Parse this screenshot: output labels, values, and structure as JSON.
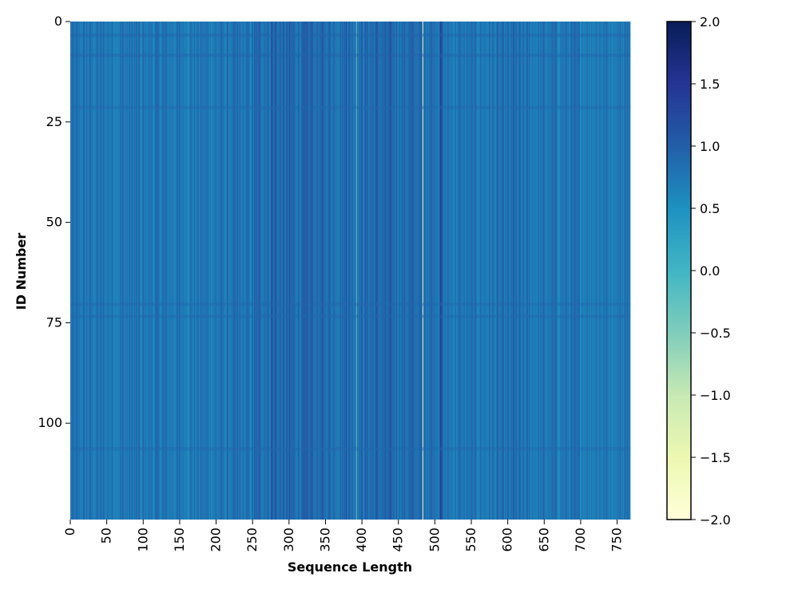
{
  "chart_data": {
    "type": "heatmap",
    "title": "",
    "xlabel": "Sequence Length",
    "ylabel": "ID Number",
    "x_range": [
      0,
      768
    ],
    "y_range": [
      0,
      124
    ],
    "y_inverted": true,
    "x_ticks": [
      0,
      50,
      100,
      150,
      200,
      250,
      300,
      350,
      400,
      450,
      500,
      550,
      600,
      650,
      700,
      750
    ],
    "y_ticks": [
      0,
      25,
      50,
      75,
      100
    ],
    "colormap": "YlGnBu",
    "colormap_stops": [
      "#ffffd9",
      "#edf8b1",
      "#c7e9b4",
      "#7fcdbb",
      "#41b6c4",
      "#1d91c0",
      "#225ea8",
      "#253494",
      "#081d58"
    ],
    "colorbar": {
      "min": -2.0,
      "max": 2.0,
      "ticks": [
        2.0,
        1.5,
        1.0,
        0.5,
        0.0,
        -0.5,
        -1.0,
        -1.5,
        -2.0
      ],
      "tick_labels": [
        "2.0",
        "1.5",
        "1.0",
        "0.5",
        "0.0",
        "−0.5",
        "−1.0",
        "−1.5",
        "−2.0"
      ]
    },
    "base_value": 0.75,
    "column_offsets": [
      {
        "x": 97,
        "value": 0.3
      },
      {
        "x": 252,
        "value": 1.0
      },
      {
        "x": 276,
        "value": 1.3
      },
      {
        "x": 281,
        "value": 1.2
      },
      {
        "x": 300,
        "value": 1.2
      },
      {
        "x": 330,
        "value": 1.25
      },
      {
        "x": 378,
        "value": 1.3
      },
      {
        "x": 392,
        "value": -0.3
      },
      {
        "x": 419,
        "value": 1.3
      },
      {
        "x": 438,
        "value": 1.2
      },
      {
        "x": 483,
        "value": -1.9
      },
      {
        "x": 507,
        "value": 1.6
      },
      {
        "x": 509,
        "value": 1.5
      },
      {
        "x": 608,
        "value": 1.2
      },
      {
        "x": 764,
        "value": 1.0
      }
    ],
    "row_bands": [
      {
        "y": 3,
        "value": 0.95
      },
      {
        "y": 8,
        "value": 0.95
      },
      {
        "y": 21,
        "value": 0.9
      },
      {
        "y": 70,
        "value": 0.9
      },
      {
        "y": 73,
        "value": 0.9
      },
      {
        "y": 106,
        "value": 0.9
      }
    ],
    "value_range_estimate": [
      -1.9,
      1.6
    ]
  }
}
